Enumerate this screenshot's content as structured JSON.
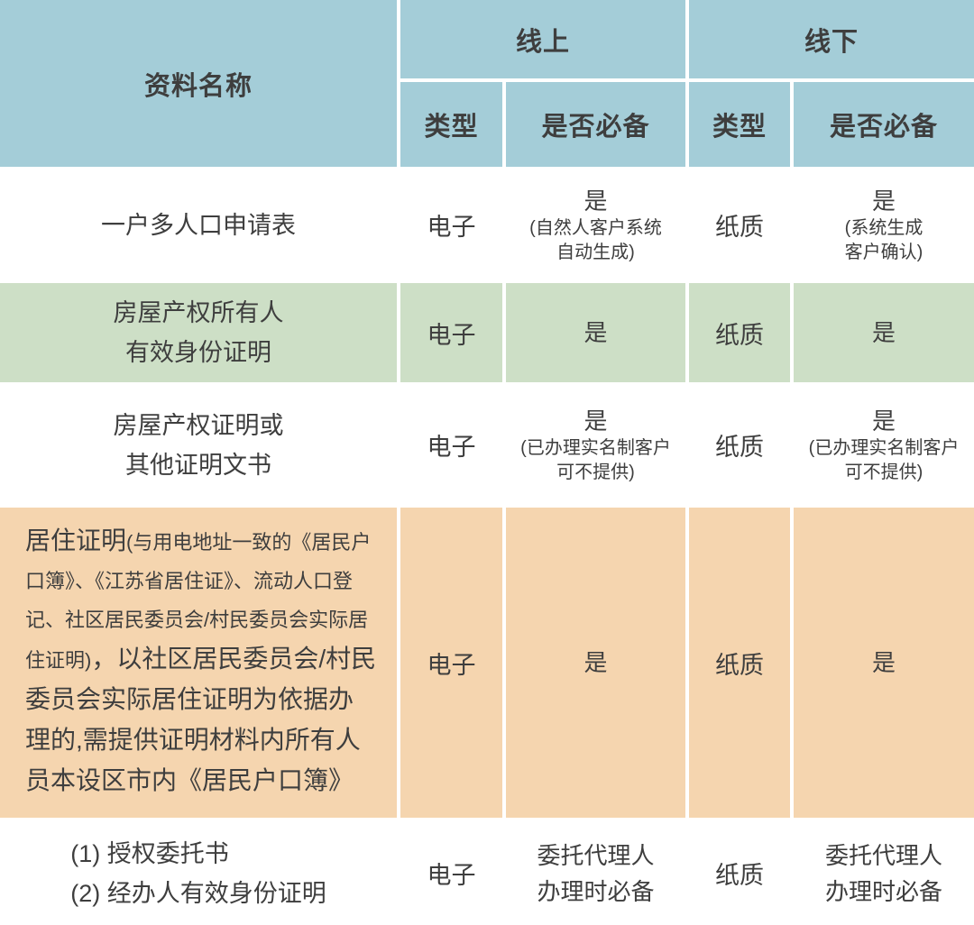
{
  "colors": {
    "header_bg": "#a4cdd8",
    "green_row_bg": "#cddfc6",
    "orange_row_bg": "#f5d5af",
    "text": "#3e3e3e",
    "separator": "#ffffff"
  },
  "header": {
    "material": "资料名称",
    "online": "线上",
    "offline": "线下",
    "type": "类型",
    "required": "是否必备"
  },
  "rows": [
    {
      "name": "一户多人口申请表",
      "online_type": "电子",
      "online_req": "是",
      "online_note": "(自然人客户系统\n自动生成)",
      "offline_type": "纸质",
      "offline_req": "是",
      "offline_note": "(系统生成\n客户确认)"
    },
    {
      "name": "房屋产权所有人\n有效身份证明",
      "online_type": "电子",
      "online_req": "是",
      "offline_type": "纸质",
      "offline_req": "是"
    },
    {
      "name": "房屋产权证明或\n其他证明文书",
      "online_type": "电子",
      "online_req": "是",
      "online_note": "(已办理实名制客户\n可不提供)",
      "offline_type": "纸质",
      "offline_req": "是",
      "offline_note": "(已办理实名制客户\n可不提供)"
    },
    {
      "name_lead": "居住证明",
      "name_note": "(与用电地址一致的《居民户口簿》、《江苏省居住证》、流动人口登记、社区居民委员会/村民委员会实际居住证明)",
      "name_tail": "，以社区居民委员会/村民委员会实际居住证明为依据办理的,需提供证明材料内所有人员本设区市内《居民户口簿》",
      "online_type": "电子",
      "online_req": "是",
      "offline_type": "纸质",
      "offline_req": "是"
    },
    {
      "name": "(1) 授权委托书\n(2) 经办人有效身份证明",
      "online_type": "电子",
      "online_req": "委托代理人\n办理时必备",
      "offline_type": "纸质",
      "offline_req": "委托代理人\n办理时必备"
    }
  ]
}
